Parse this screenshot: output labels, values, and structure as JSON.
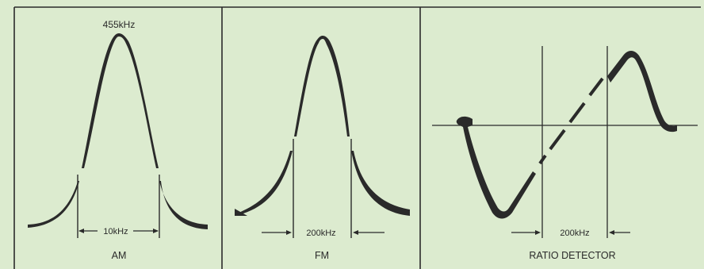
{
  "panels": [
    {
      "id": "am",
      "caption": "AM",
      "peak_label": "455kHz",
      "bandwidth_label": "10kHz"
    },
    {
      "id": "fm",
      "caption": "FM",
      "bandwidth_label": "200kHz"
    },
    {
      "id": "ratio",
      "caption": "RATIO DETECTOR",
      "bandwidth_label": "200kHz"
    }
  ],
  "colors": {
    "background": "#dcebcf",
    "ink": "#2a2a2a"
  }
}
